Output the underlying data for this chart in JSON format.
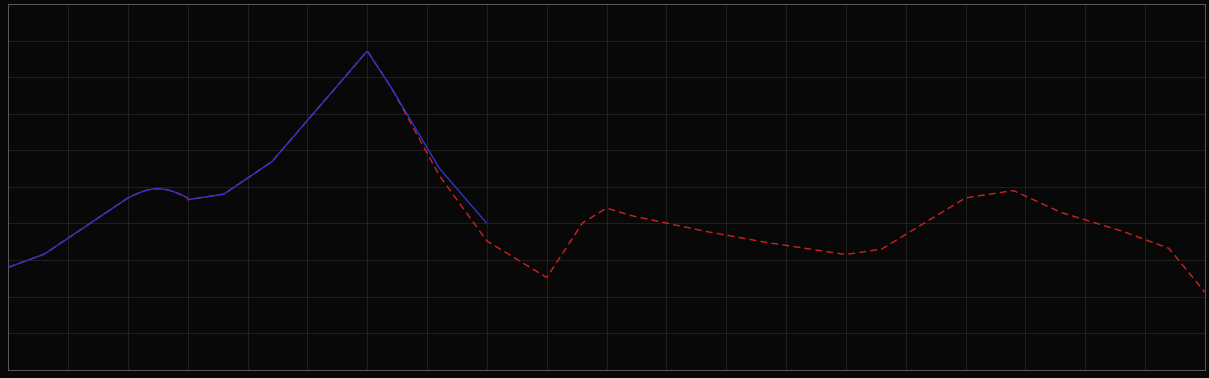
{
  "background_color": "#080808",
  "plot_bg_color": "#080808",
  "grid_color": "#444444",
  "line1_color": "#3333cc",
  "line2_color": "#cc2222",
  "figure_size": [
    12.09,
    3.78
  ],
  "dpi": 100,
  "spine_color": "#666666",
  "tick_color": "#666666",
  "xlim": [
    0,
    100
  ],
  "ylim": [
    0,
    10
  ],
  "x_major_interval": 5,
  "y_major_interval": 1,
  "linewidth_blue": 1.0,
  "linewidth_red": 1.0
}
